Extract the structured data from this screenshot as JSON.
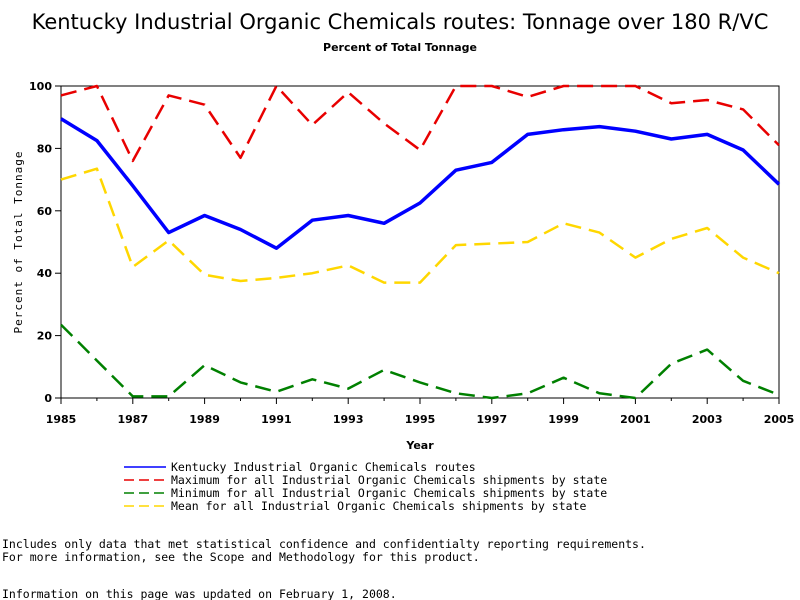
{
  "chart_data": {
    "type": "line",
    "title": "Kentucky Industrial Organic Chemicals routes: Tonnage over 180 R/VC",
    "subtitle": "Percent of Total Tonnage",
    "xlabel": "Year",
    "ylabel": "Percent of Total Tonnage",
    "xlim": [
      1985,
      2005
    ],
    "ylim": [
      0,
      100
    ],
    "x_ticks": [
      "1985",
      "1987",
      "1989",
      "1991",
      "1993",
      "1995",
      "1997",
      "1999",
      "2001",
      "2003",
      "2005"
    ],
    "y_ticks": [
      "0",
      "20",
      "40",
      "60",
      "80",
      "100"
    ],
    "grid": false,
    "legend_placement": "bottom",
    "x": [
      1985,
      1986,
      1987,
      1988,
      1989,
      1990,
      1991,
      1992,
      1993,
      1994,
      1995,
      1996,
      1997,
      1998,
      1999,
      2000,
      2001,
      2002,
      2003,
      2004,
      2005
    ],
    "series": [
      {
        "name": "Kentucky Industrial Organic Chemicals routes",
        "color": "#0000ff",
        "style": "solid",
        "values": [
          89.5,
          82.5,
          68,
          53,
          58.5,
          54,
          48,
          57,
          58.5,
          56,
          62.5,
          73,
          75.5,
          84.5,
          86,
          87,
          85.5,
          83,
          84.5,
          79.5,
          68.5
        ]
      },
      {
        "name": "Maximum for all Industrial Organic Chemicals shipments by state",
        "color": "#e80000",
        "style": "dashed",
        "values": [
          97,
          100,
          76,
          97,
          94,
          77,
          100,
          87.5,
          98,
          88,
          79.5,
          100,
          100,
          96.5,
          100,
          100,
          100,
          94.5,
          95.5,
          92.5,
          81
        ]
      },
      {
        "name": "Minimum for all Industrial Organic Chemicals shipments by state",
        "color": "#008000",
        "style": "dashed",
        "values": [
          23.5,
          12,
          0.5,
          0.5,
          10.5,
          5,
          2,
          6,
          3,
          9,
          5,
          1.5,
          0,
          1.5,
          6.5,
          1.5,
          0,
          11,
          15.5,
          5.5,
          1
        ]
      },
      {
        "name": "Mean for all Industrial Organic Chemicals shipments by state",
        "color": "#ffd700",
        "style": "dashed",
        "values": [
          70,
          73.5,
          42,
          50.5,
          39.5,
          37.5,
          38.5,
          40,
          42.5,
          37,
          37,
          49,
          49.5,
          50,
          56,
          53,
          45,
          51,
          54.5,
          45,
          40
        ]
      }
    ]
  },
  "footnotes": {
    "line1": "Includes only data that met statistical confidence and confidentialty reporting requirements.",
    "line2": "For more information, see the Scope and Methodology for this product.",
    "updated": "Information on this page was updated on February 1, 2008."
  }
}
